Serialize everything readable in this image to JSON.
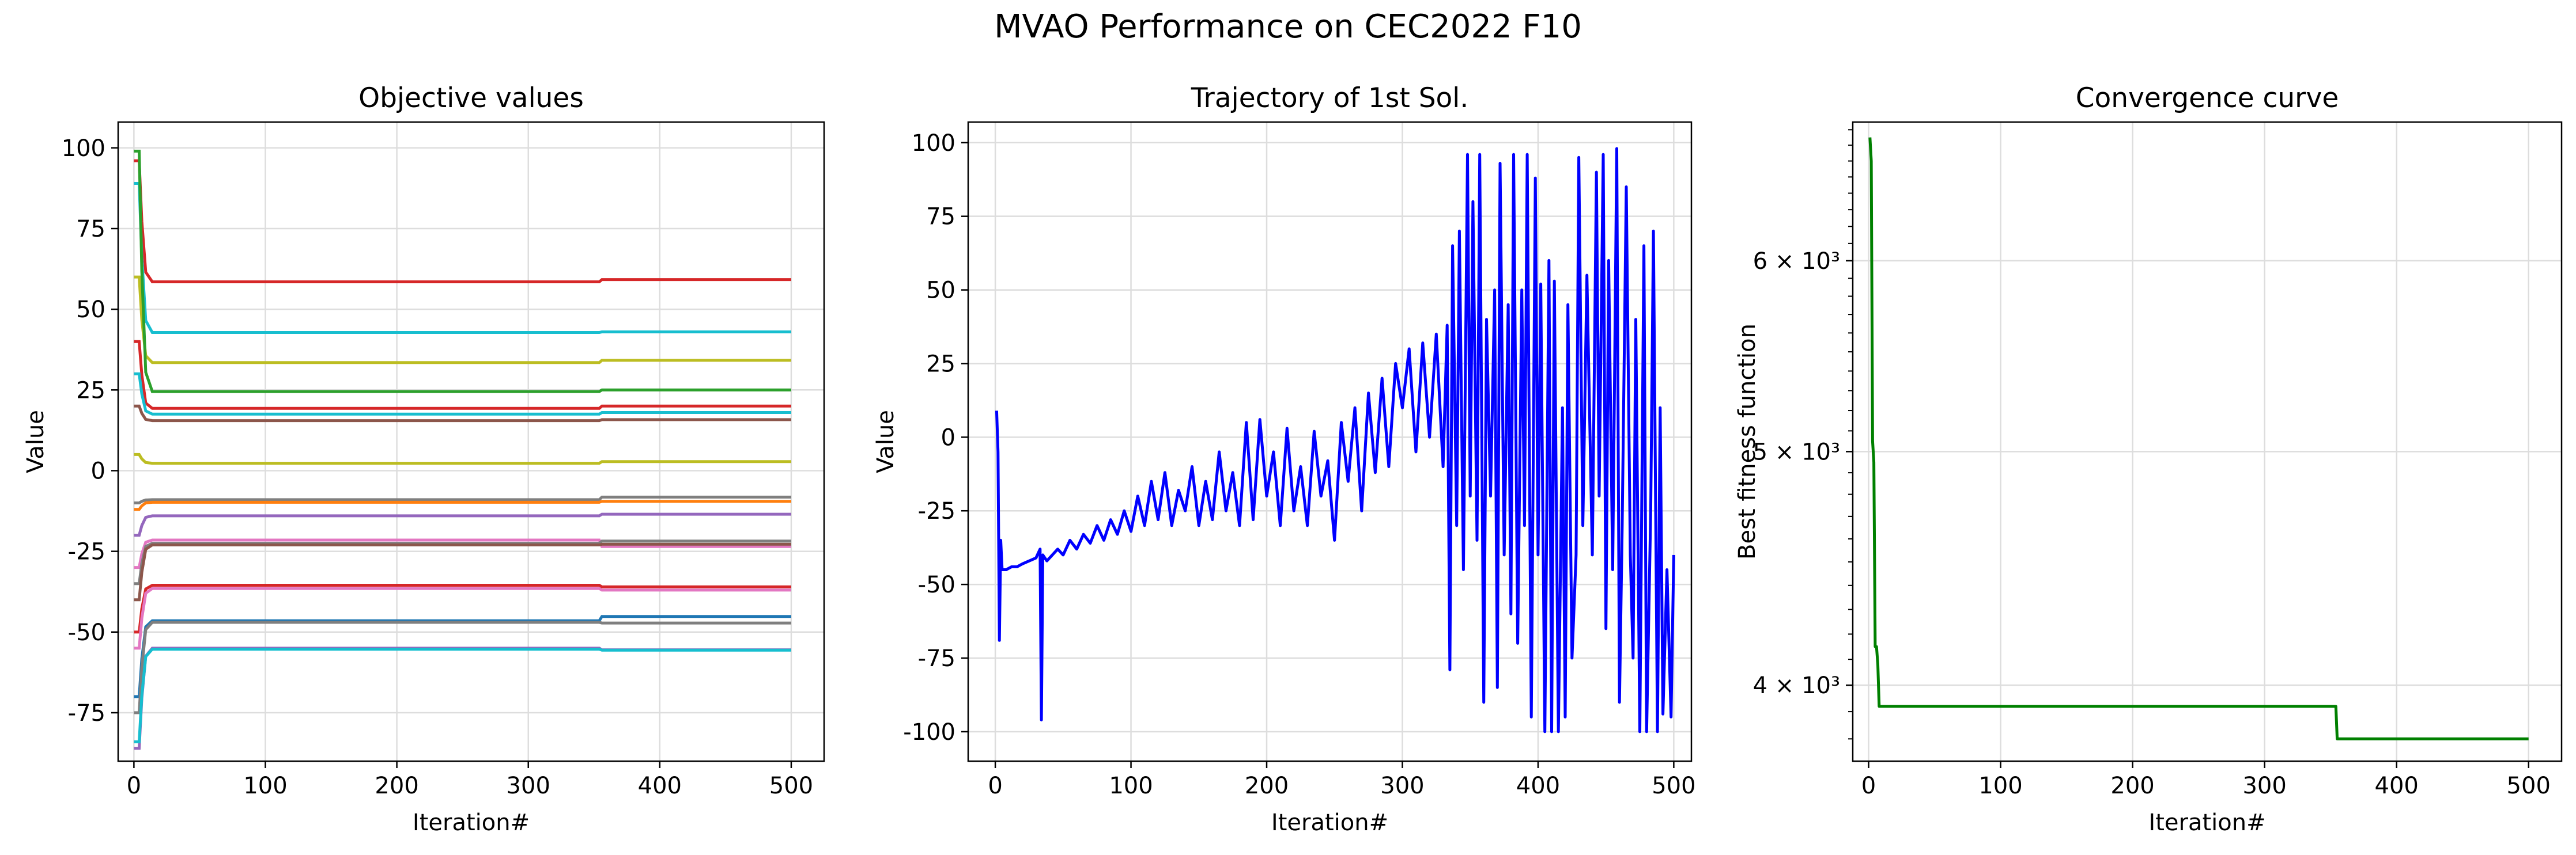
{
  "title": "MVAO Performance on CEC2022 F10",
  "chart_data": [
    {
      "type": "line",
      "title": "Objective values",
      "xlabel": "Iteration#",
      "ylabel": "Value",
      "xlim": [
        -12,
        525
      ],
      "ylim": [
        -90,
        108
      ],
      "xticks": [
        0,
        100,
        200,
        300,
        400,
        500
      ],
      "yticks": [
        -75,
        -50,
        -25,
        0,
        25,
        50,
        75,
        100
      ],
      "grid": true,
      "series": [
        {
          "color": "#d62728",
          "start": 96,
          "values": [
            58.5,
            59.2
          ]
        },
        {
          "color": "#17becf",
          "start": 89,
          "values": [
            42.8,
            43.0
          ]
        },
        {
          "color": "#bcbd22",
          "start": 60,
          "values": [
            33.5,
            34.2
          ]
        },
        {
          "color": "#2ca02c",
          "start": 99,
          "values": [
            24.5,
            25.0
          ]
        },
        {
          "color": "#d62728",
          "start": 40,
          "values": [
            19.3,
            20.0
          ]
        },
        {
          "color": "#17becf",
          "start": 30,
          "values": [
            17.5,
            18.0
          ]
        },
        {
          "color": "#8c564b",
          "start": 20,
          "values": [
            15.5,
            15.8
          ]
        },
        {
          "color": "#bcbd22",
          "start": 5,
          "values": [
            2.3,
            2.8
          ]
        },
        {
          "color": "#7f7f7f",
          "start": -10,
          "values": [
            -9.0,
            -8.2
          ]
        },
        {
          "color": "#ff7f0e",
          "start": -12,
          "values": [
            -9.8,
            -9.5
          ]
        },
        {
          "color": "#9467bd",
          "start": -20,
          "values": [
            -14.0,
            -13.5
          ]
        },
        {
          "color": "#e377c2",
          "start": -30,
          "values": [
            -21.5,
            -23.5
          ]
        },
        {
          "color": "#7f7f7f",
          "start": -35,
          "values": [
            -22.5,
            -21.8
          ]
        },
        {
          "color": "#8c564b",
          "start": -40,
          "values": [
            -23.0,
            -22.8
          ]
        },
        {
          "color": "#d62728",
          "start": -50,
          "values": [
            -35.5,
            -36.0
          ]
        },
        {
          "color": "#e377c2",
          "start": -55,
          "values": [
            -36.5,
            -37.0
          ]
        },
        {
          "color": "#1f77b4",
          "start": -70,
          "values": [
            -46.5,
            -45.2
          ]
        },
        {
          "color": "#7f7f7f",
          "start": -75,
          "values": [
            -47.0,
            -47.2
          ]
        },
        {
          "color": "#9467bd",
          "start": -86,
          "values": [
            -55.0,
            -55.5
          ]
        },
        {
          "color": "#17becf",
          "start": -84,
          "values": [
            -55.3,
            -55.6
          ]
        }
      ]
    },
    {
      "type": "line",
      "title": "Trajectory of 1st Sol.",
      "xlabel": "Iteration#",
      "ylabel": "Value",
      "xlim": [
        -20,
        513
      ],
      "ylim": [
        -110,
        107
      ],
      "xticks": [
        0,
        100,
        200,
        300,
        400,
        500
      ],
      "yticks": [
        -100,
        -75,
        -50,
        -25,
        0,
        25,
        50,
        75,
        100
      ],
      "grid": true,
      "color": "#0000ff",
      "x": [
        1,
        2,
        3,
        4,
        5,
        8,
        12,
        16,
        20,
        25,
        30,
        33,
        34,
        35,
        38,
        42,
        46,
        50,
        55,
        60,
        65,
        70,
        75,
        80,
        85,
        90,
        95,
        100,
        105,
        110,
        115,
        120,
        125,
        130,
        135,
        140,
        145,
        150,
        155,
        160,
        165,
        170,
        175,
        180,
        185,
        190,
        195,
        200,
        205,
        210,
        215,
        220,
        225,
        230,
        235,
        240,
        245,
        250,
        255,
        260,
        265,
        270,
        275,
        280,
        285,
        290,
        295,
        300,
        305,
        310,
        315,
        320,
        325,
        330,
        333,
        335,
        337,
        340,
        342,
        345,
        348,
        350,
        352,
        355,
        357,
        360,
        362,
        365,
        368,
        370,
        372,
        375,
        378,
        380,
        382,
        385,
        388,
        390,
        392,
        395,
        398,
        400,
        402,
        405,
        408,
        410,
        412,
        415,
        418,
        420,
        422,
        425,
        428,
        430,
        433,
        436,
        440,
        443,
        445,
        448,
        450,
        452,
        455,
        458,
        460,
        462,
        465,
        468,
        470,
        472,
        475,
        478,
        480,
        483,
        485,
        488,
        490,
        492,
        495,
        498,
        500
      ],
      "values": [
        9,
        -5,
        -69,
        -35,
        -45,
        -45,
        -44,
        -44,
        -43,
        -42,
        -41,
        -38,
        -96,
        -40,
        -42,
        -40,
        -38,
        -40,
        -35,
        -38,
        -33,
        -36,
        -30,
        -35,
        -28,
        -33,
        -25,
        -32,
        -20,
        -30,
        -15,
        -28,
        -12,
        -30,
        -18,
        -25,
        -10,
        -30,
        -15,
        -28,
        -5,
        -25,
        -12,
        -30,
        5,
        -28,
        6,
        -20,
        -5,
        -30,
        3,
        -25,
        -10,
        -30,
        2,
        -20,
        -8,
        -35,
        5,
        -15,
        10,
        -25,
        15,
        -12,
        20,
        -10,
        25,
        10,
        30,
        -5,
        32,
        0,
        35,
        -10,
        38,
        -79,
        65,
        -30,
        70,
        -45,
        96,
        -20,
        80,
        -35,
        96,
        -90,
        40,
        -20,
        50,
        -85,
        93,
        -40,
        45,
        -60,
        96,
        -70,
        50,
        -30,
        96,
        -95,
        88,
        -40,
        52,
        -100,
        60,
        -100,
        53,
        -100,
        10,
        -95,
        45,
        -75,
        -40,
        95,
        -30,
        55,
        -40,
        90,
        -20,
        96,
        -65,
        60,
        -45,
        98,
        -90,
        -30,
        85,
        -40,
        -75,
        40,
        -100,
        65,
        -100,
        -25,
        70,
        -100,
        10,
        -94,
        -45,
        -95,
        -40
      ]
    },
    {
      "type": "line",
      "title": "Convergence curve",
      "xlabel": "Iteration#",
      "ylabel": "Best fitness function",
      "yscale": "log",
      "xlim": [
        -12,
        525
      ],
      "ylim": [
        3720,
        6850
      ],
      "xticks": [
        0,
        100,
        200,
        300,
        400,
        500
      ],
      "yticks": [
        4000,
        5000,
        6000
      ],
      "ytick_labels": [
        "4 × 10³",
        "5 × 10³",
        "6 × 10³"
      ],
      "grid": true,
      "color": "#008000",
      "x": [
        1,
        2,
        3,
        4,
        5,
        6,
        7,
        8,
        9,
        354,
        355,
        356,
        500
      ],
      "values": [
        6750,
        6600,
        5050,
        4950,
        4150,
        4150,
        4080,
        3920,
        3920,
        3920,
        3800,
        3800,
        3800
      ]
    }
  ]
}
